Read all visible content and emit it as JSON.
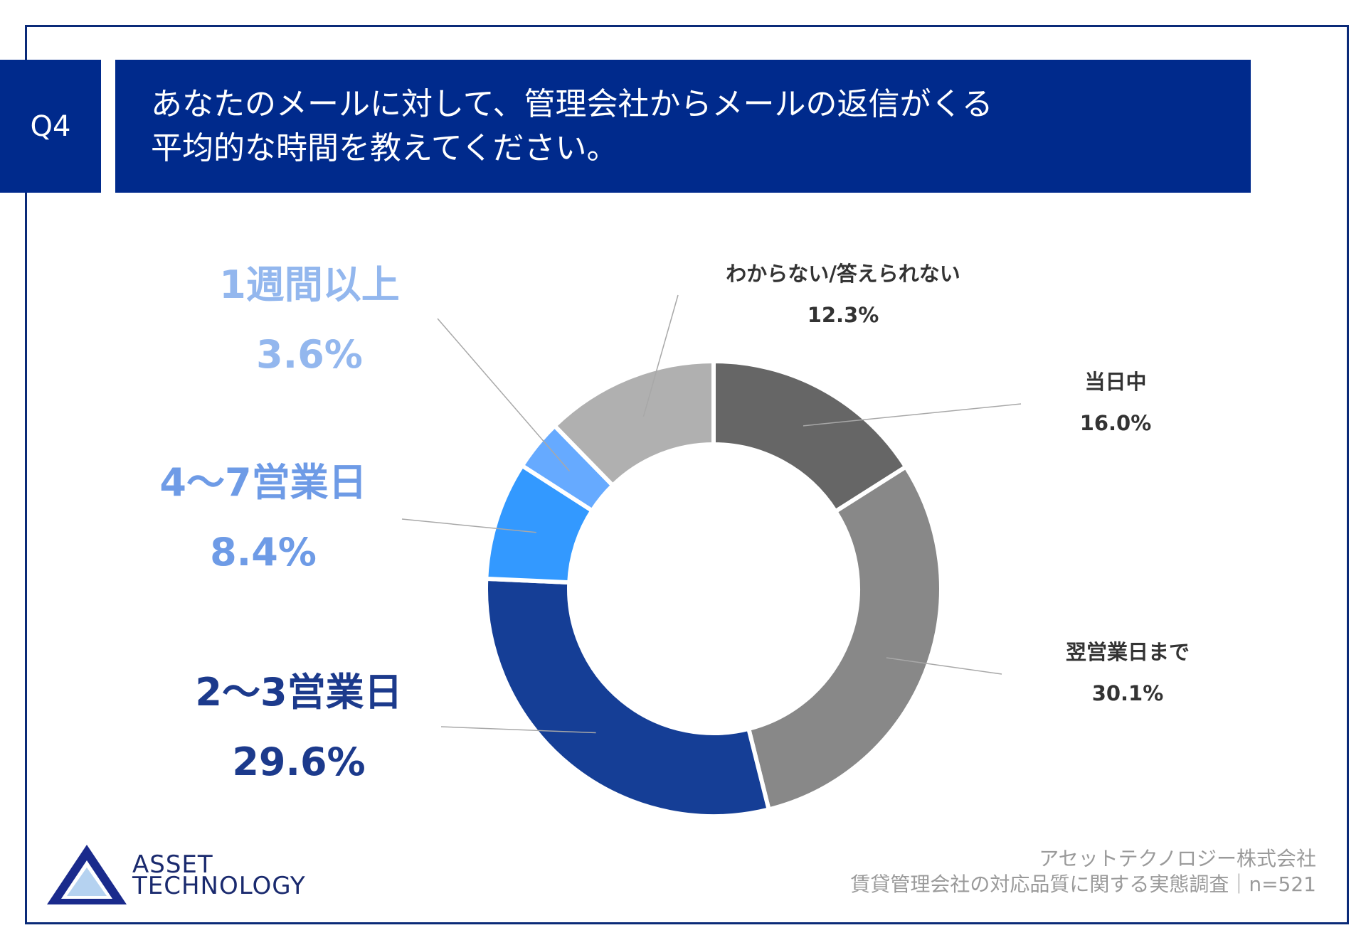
{
  "question_badge": "Q4",
  "title_lines": [
    "あなたのメールに対して、管理会社からメールの返信がくる",
    "平均的な時間を教えてください。"
  ],
  "colors": {
    "brand": "#002a8c",
    "frame": "#0a2a78"
  },
  "chart_data": {
    "type": "pie",
    "style": "donut",
    "title": "あなたのメールに対して、管理会社からメールの返信がくる平均的な時間を教えてください。",
    "categories": [
      "当日中",
      "翌営業日まで",
      "2〜3営業日",
      "4〜7営業日",
      "1週間以上",
      "わからない/答えられない"
    ],
    "values": [
      16.0,
      30.1,
      29.6,
      8.4,
      3.6,
      12.3
    ],
    "value_labels": [
      "16.0%",
      "30.1%",
      "29.6%",
      "8.4%",
      "3.6%",
      "12.3%"
    ],
    "colors": [
      "#666666",
      "#888888",
      "#153e96",
      "#3399ff",
      "#66aaff",
      "#b0b0b0"
    ],
    "label_colors": [
      "#333333",
      "#333333",
      "#1c3a8c",
      "#6e9be6",
      "#93b7ee",
      "#333333"
    ],
    "legend": "none"
  },
  "logo": {
    "line1": "ASSET",
    "line2": "TECHNOLOGY"
  },
  "footer": {
    "company": "アセットテクノロジー株式会社",
    "survey": "賃貸管理会社の対応品質に関する実態調査｜n=521"
  }
}
